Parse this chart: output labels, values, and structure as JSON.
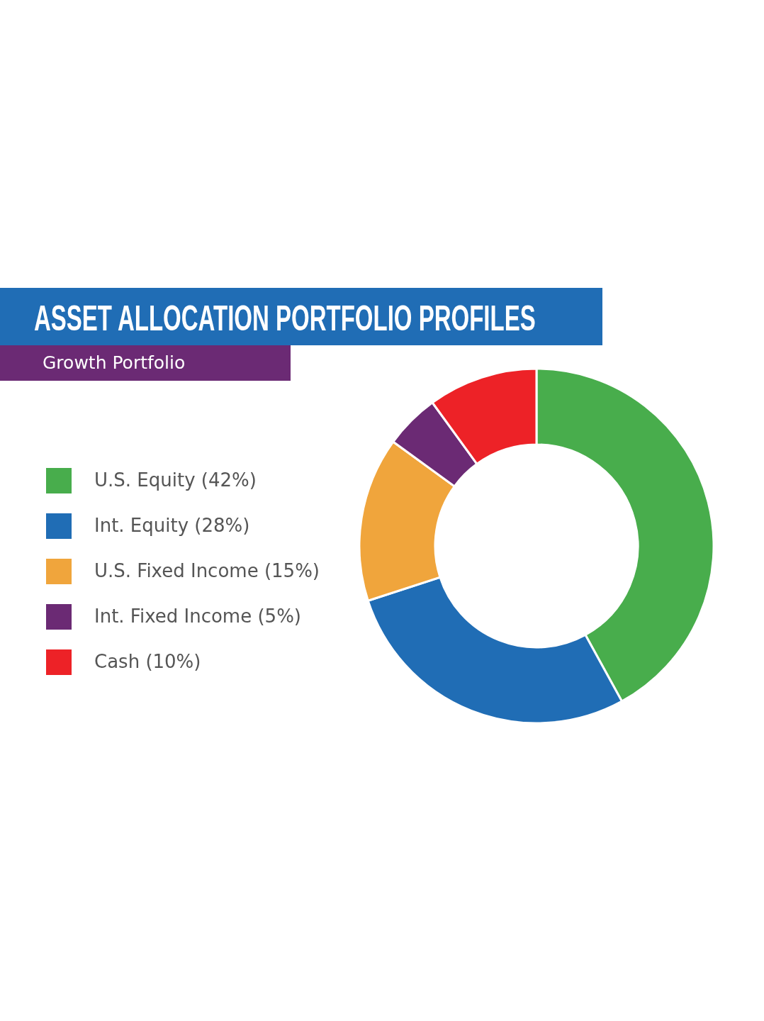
{
  "chart_data": {
    "type": "donut",
    "title": "ASSET ALLOCATION PORTFOLIO PROFILES",
    "subtitle": "Growth Portfolio",
    "categories": [
      "U.S. Equity (42%)",
      "Int. Equity (28%)",
      "U.S. Fixed Income (15%)",
      "Int. Fixed Income (5%)",
      "Cash (10%)"
    ],
    "values": [
      42,
      28,
      15,
      5,
      10
    ],
    "colors": [
      "#48ad4c",
      "#206db5",
      "#f0a53c",
      "#6b2a74",
      "#ed2227"
    ],
    "legend": "left"
  }
}
